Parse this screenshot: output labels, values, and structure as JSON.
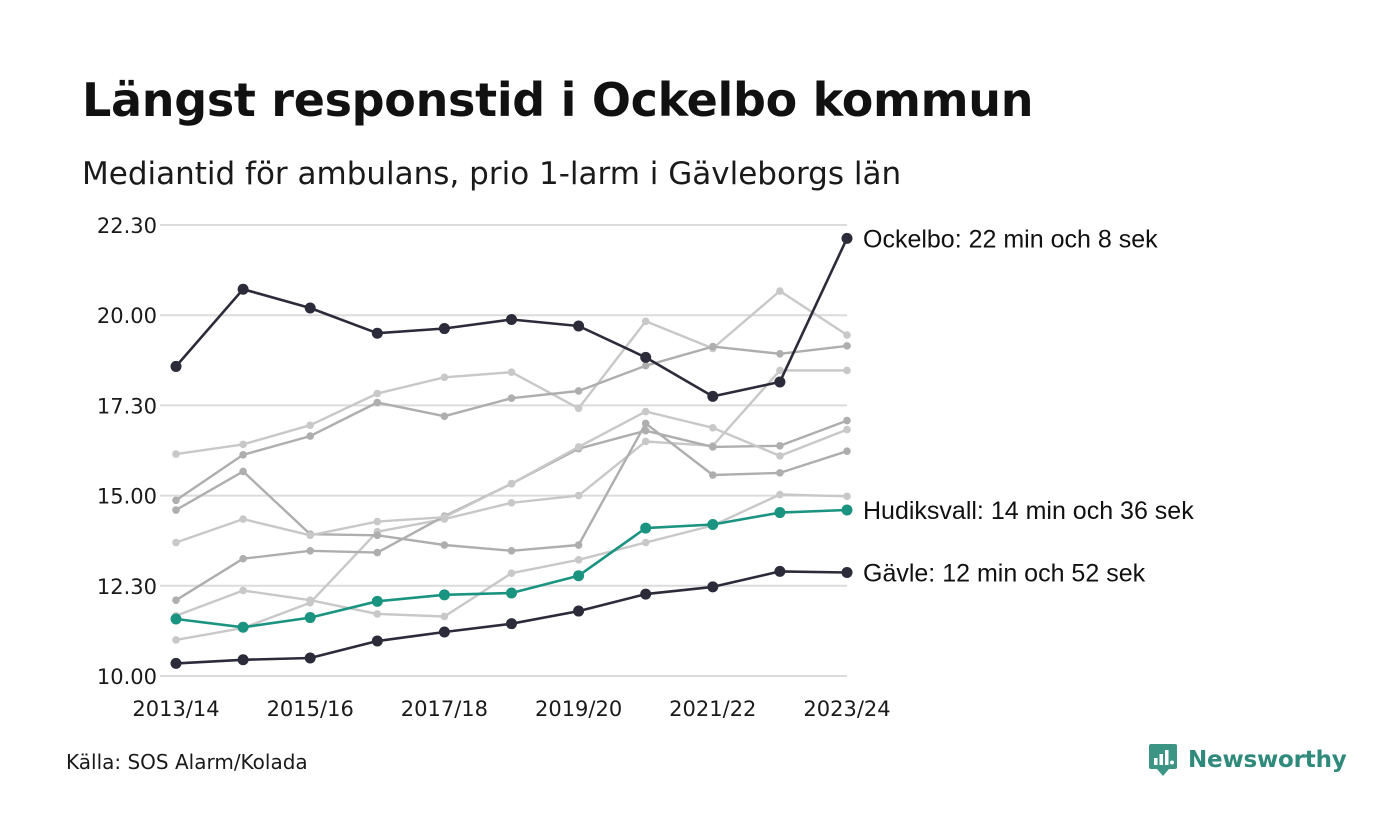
{
  "header": {
    "title": "Längst responstid i Ockelbo kommun",
    "subtitle": "Mediantid för ambulans, prio 1-larm i Gävleborgs län"
  },
  "footer": {
    "source": "Källa: SOS Alarm/Kolada",
    "brand": "Newsworthy"
  },
  "colors": {
    "highlight_dark": "#2b2b3a",
    "highlight_teal": "#1a9481",
    "background_lines": [
      "#c8c8c8",
      "#aeaeae"
    ],
    "grid": "#dcdcdc",
    "brand": "#2f8a7c"
  },
  "chart_data": {
    "type": "line",
    "x": [
      "2013/14",
      "2014/15",
      "2015/16",
      "2016/17",
      "2017/18",
      "2018/19",
      "2019/20",
      "2020/21",
      "2021/22",
      "2022/23",
      "2023/24"
    ],
    "x_tick_labels": [
      "2013/14",
      "2015/16",
      "2017/18",
      "2019/20",
      "2021/22",
      "2023/24"
    ],
    "y_tick_labels": [
      "10.00",
      "12.30",
      "15.00",
      "17.30",
      "20.00",
      "22.30"
    ],
    "ylim": [
      10.0,
      22.5
    ],
    "grid": "horizontal",
    "series": [
      {
        "name": "Ockelbo",
        "label": "Ockelbo: 22 min och 8 sek",
        "color": "#2b2b3a",
        "highlight": true,
        "values": [
          18.58,
          20.72,
          20.2,
          19.5,
          19.63,
          19.88,
          19.7,
          18.83,
          17.75,
          18.15,
          22.13
        ]
      },
      {
        "name": "Hudiksvall",
        "label": "Hudiksvall: 14 min och 36 sek",
        "color": "#1a9481",
        "highlight": true,
        "values": [
          11.58,
          11.35,
          11.62,
          12.07,
          12.25,
          12.3,
          12.78,
          14.1,
          14.2,
          14.53,
          14.6
        ]
      },
      {
        "name": "Gävle",
        "label": "Gävle: 12 min och 52 sek",
        "color": "#2b2b3a",
        "highlight": true,
        "values": [
          10.35,
          10.45,
          10.5,
          10.97,
          11.22,
          11.45,
          11.8,
          12.27,
          12.47,
          12.9,
          12.87
        ]
      },
      {
        "color": "#c8c8c8",
        "values": [
          16.15,
          16.42,
          16.95,
          17.83,
          18.28,
          18.42,
          17.42,
          19.83,
          19.08,
          20.67,
          19.45
        ]
      },
      {
        "color": "#aeaeae",
        "values": [
          14.87,
          16.13,
          16.65,
          17.58,
          17.2,
          17.7,
          17.9,
          18.6,
          19.13,
          18.93,
          19.15
        ]
      },
      {
        "color": "#c8c8c8",
        "values": [
          11.0,
          11.33,
          12.03,
          14.0,
          14.35,
          14.8,
          15.0,
          16.5,
          16.38,
          18.47,
          18.47
        ]
      },
      {
        "color": "#aeaeae",
        "values": [
          12.1,
          13.25,
          13.47,
          13.42,
          14.43,
          15.33,
          16.3,
          16.8,
          16.35,
          16.38,
          17.08
        ]
      },
      {
        "color": "#c8c8c8",
        "values": [
          11.67,
          12.37,
          12.1,
          11.72,
          11.65,
          12.85,
          13.22,
          13.7,
          14.17,
          15.03,
          14.98
        ]
      },
      {
        "color": "#aeaeae",
        "values": [
          14.6,
          15.67,
          13.93,
          13.9,
          13.63,
          13.47,
          13.63,
          17.0,
          15.57,
          15.63,
          16.23
        ]
      },
      {
        "color": "#c8c8c8",
        "values": [
          13.7,
          14.35,
          13.9,
          14.28,
          14.4,
          15.33,
          16.35,
          17.33,
          16.88,
          16.1,
          16.83
        ]
      }
    ]
  }
}
